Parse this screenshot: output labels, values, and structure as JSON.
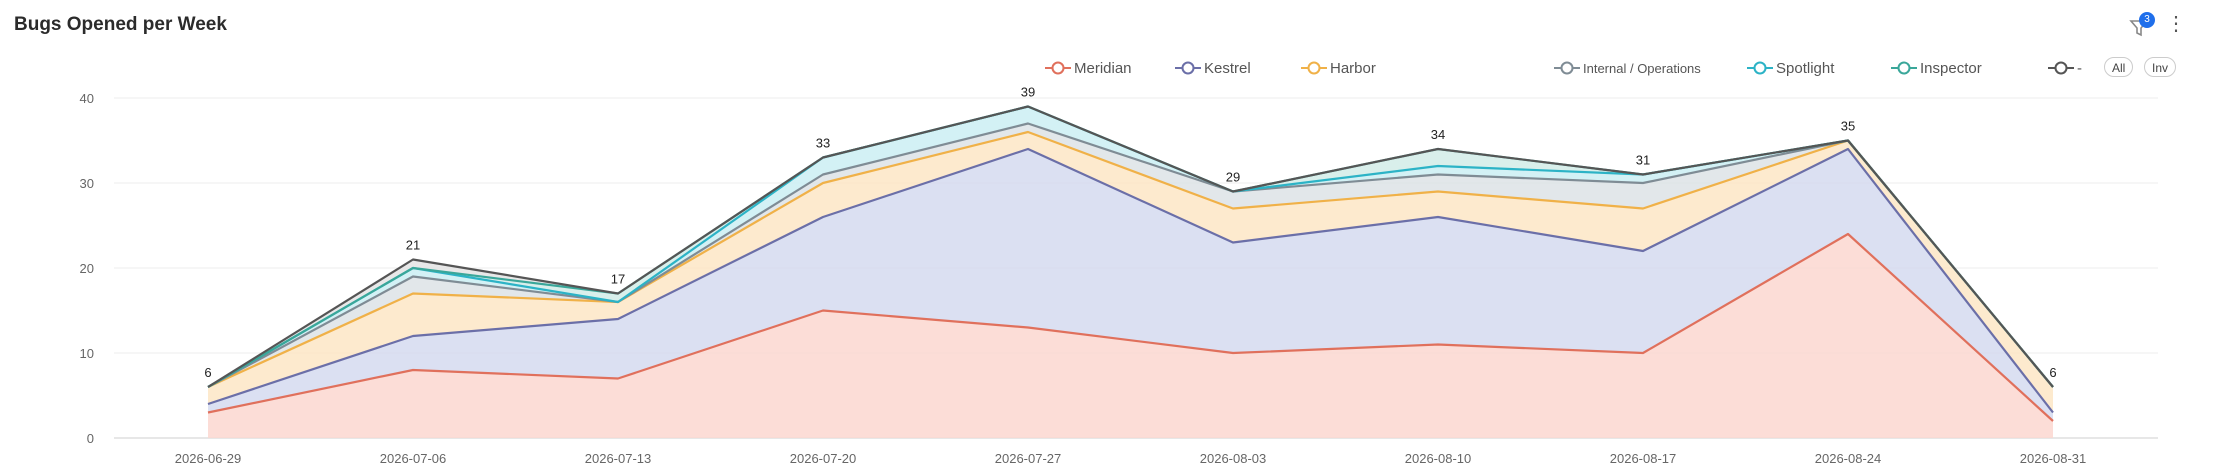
{
  "header": {
    "title": "Bugs Opened per Week",
    "filter_badge": "3"
  },
  "legend": {
    "controls": {
      "all": "All",
      "inv": "Inv"
    }
  },
  "chart_data": {
    "type": "area",
    "stacked": true,
    "title": "Bugs Opened per Week",
    "xlabel": "",
    "ylabel": "",
    "ylim": [
      0,
      40
    ],
    "y_ticks": [
      0,
      10,
      20,
      30,
      40
    ],
    "grid": true,
    "legend_position": "top-right",
    "categories": [
      "2026-06-29",
      "2026-07-06",
      "2026-07-13",
      "2026-07-20",
      "2026-07-27",
      "2026-08-03",
      "2026-08-10",
      "2026-08-17",
      "2026-08-24",
      "2026-08-31"
    ],
    "totals": [
      6,
      21,
      17,
      33,
      39,
      29,
      34,
      31,
      35,
      6
    ],
    "series": [
      {
        "name": "Meridian",
        "color": "#e0705c",
        "fill": "#fbd7d0",
        "values": [
          3,
          8,
          7,
          15,
          13,
          10,
          11,
          10,
          24,
          2
        ]
      },
      {
        "name": "Kestrel",
        "color": "#6b6fa8",
        "fill": "#d5daf0",
        "values": [
          1,
          4,
          7,
          11,
          21,
          13,
          15,
          12,
          10,
          1
        ]
      },
      {
        "name": "Harbor",
        "color": "#f0b148",
        "fill": "#fde6c6",
        "values": [
          2,
          5,
          2,
          4,
          2,
          4,
          3,
          5,
          1,
          3
        ]
      },
      {
        "name": "Internal / Operations",
        "color": "#7f8c95",
        "fill": "#dde3e6",
        "values": [
          0,
          2,
          0,
          1,
          1,
          2,
          2,
          3,
          0,
          0
        ]
      },
      {
        "name": "Spotlight",
        "color": "#2cb3c6",
        "fill": "#cbeef3",
        "values": [
          0,
          1,
          0,
          2,
          2,
          0,
          1,
          1,
          0,
          0
        ]
      },
      {
        "name": "Inspector",
        "color": "#3aa79a",
        "fill": "#d2ece8",
        "values": [
          0,
          0,
          1,
          0,
          0,
          0,
          2,
          0,
          0,
          0
        ]
      },
      {
        "name": "-",
        "color": "#555555",
        "fill": "#e4e4e4",
        "values": [
          0,
          1,
          0,
          0,
          0,
          0,
          0,
          0,
          0,
          0
        ]
      }
    ]
  }
}
